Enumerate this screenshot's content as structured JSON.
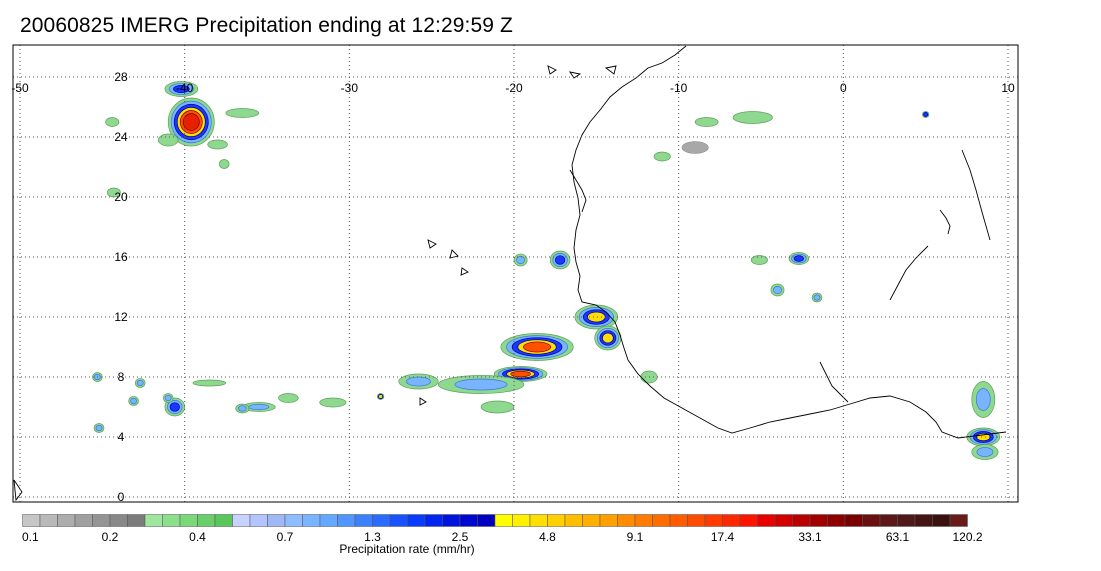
{
  "title": "20060825 IMERG Precipitation ending at 12:29:59 Z",
  "map": {
    "lon_range": [
      -50,
      10
    ],
    "lat_range": [
      -1,
      29
    ],
    "lon_ticks": [
      {
        "value": -50,
        "label": "-50"
      },
      {
        "value": -40,
        "label": "-40"
      },
      {
        "value": -30,
        "label": "-30"
      },
      {
        "value": -20,
        "label": "-20"
      },
      {
        "value": -10,
        "label": "-10"
      },
      {
        "value": 0,
        "label": "0"
      },
      {
        "value": 10,
        "label": "10"
      }
    ],
    "lat_ticks": [
      {
        "value": 0,
        "label": "0"
      },
      {
        "value": 4,
        "label": "4"
      },
      {
        "value": 8,
        "label": "8"
      },
      {
        "value": 12,
        "label": "12"
      },
      {
        "value": 16,
        "label": "16"
      },
      {
        "value": 20,
        "label": "20"
      },
      {
        "value": 24,
        "label": "24"
      },
      {
        "value": 28,
        "label": "28"
      }
    ],
    "grid": "dotted",
    "precip_cells": [
      {
        "lon": -39.6,
        "lat": 25.0,
        "rx": 1.4,
        "ry": 1.6,
        "level": 6
      },
      {
        "lon": -40.2,
        "lat": 27.2,
        "rx": 1.0,
        "ry": 0.5,
        "level": 3
      },
      {
        "lon": -41.0,
        "lat": 23.8,
        "rx": 0.6,
        "ry": 0.4,
        "level": 1
      },
      {
        "lon": -36.5,
        "lat": 25.6,
        "rx": 1.0,
        "ry": 0.3,
        "level": 1
      },
      {
        "lon": -38.0,
        "lat": 23.5,
        "rx": 0.6,
        "ry": 0.3,
        "level": 1
      },
      {
        "lon": -44.4,
        "lat": 25.0,
        "rx": 0.4,
        "ry": 0.3,
        "level": 1
      },
      {
        "lon": -44.3,
        "lat": 20.3,
        "rx": 0.4,
        "ry": 0.3,
        "level": 1
      },
      {
        "lon": -37.6,
        "lat": 22.2,
        "rx": 0.3,
        "ry": 0.3,
        "level": 1
      },
      {
        "lon": -18.6,
        "lat": 10.0,
        "rx": 2.2,
        "ry": 0.9,
        "level": 5
      },
      {
        "lon": -19.6,
        "lat": 8.2,
        "rx": 1.6,
        "ry": 0.5,
        "level": 5
      },
      {
        "lon": -15.0,
        "lat": 12.0,
        "rx": 1.3,
        "ry": 0.8,
        "level": 4
      },
      {
        "lon": -14.3,
        "lat": 10.6,
        "rx": 0.8,
        "ry": 0.8,
        "level": 4
      },
      {
        "lon": -22.0,
        "lat": 7.5,
        "rx": 2.6,
        "ry": 0.6,
        "level": 2
      },
      {
        "lon": -25.8,
        "lat": 7.7,
        "rx": 1.2,
        "ry": 0.5,
        "level": 2
      },
      {
        "lon": -17.2,
        "lat": 15.8,
        "rx": 0.6,
        "ry": 0.6,
        "level": 3
      },
      {
        "lon": -19.6,
        "lat": 15.8,
        "rx": 0.4,
        "ry": 0.4,
        "level": 2
      },
      {
        "lon": -21.0,
        "lat": 6.0,
        "rx": 1.0,
        "ry": 0.4,
        "level": 1
      },
      {
        "lon": -40.6,
        "lat": 6.0,
        "rx": 0.6,
        "ry": 0.6,
        "level": 3
      },
      {
        "lon": -45.3,
        "lat": 8.0,
        "rx": 0.3,
        "ry": 0.3,
        "level": 2
      },
      {
        "lon": -42.7,
        "lat": 7.6,
        "rx": 0.3,
        "ry": 0.3,
        "level": 2
      },
      {
        "lon": -43.1,
        "lat": 6.4,
        "rx": 0.3,
        "ry": 0.3,
        "level": 2
      },
      {
        "lon": -41.0,
        "lat": 6.6,
        "rx": 0.3,
        "ry": 0.3,
        "level": 2
      },
      {
        "lon": -35.5,
        "lat": 6.0,
        "rx": 1.0,
        "ry": 0.3,
        "level": 2
      },
      {
        "lon": -33.7,
        "lat": 6.6,
        "rx": 0.6,
        "ry": 0.3,
        "level": 1
      },
      {
        "lon": -31.0,
        "lat": 6.3,
        "rx": 0.8,
        "ry": 0.3,
        "level": 1
      },
      {
        "lon": -38.5,
        "lat": 7.6,
        "rx": 1.0,
        "ry": 0.2,
        "level": 1
      },
      {
        "lon": -36.5,
        "lat": 5.9,
        "rx": 0.4,
        "ry": 0.3,
        "level": 2
      },
      {
        "lon": -28.1,
        "lat": 6.7,
        "rx": 0.2,
        "ry": 0.2,
        "level": 4
      },
      {
        "lon": -45.2,
        "lat": 4.6,
        "rx": 0.3,
        "ry": 0.3,
        "level": 2
      },
      {
        "lon": 8.5,
        "lat": 4.0,
        "rx": 1.0,
        "ry": 0.6,
        "level": 4
      },
      {
        "lon": 8.5,
        "lat": 6.5,
        "rx": 0.7,
        "ry": 1.2,
        "level": 2
      },
      {
        "lon": 8.6,
        "lat": 3.0,
        "rx": 0.8,
        "ry": 0.5,
        "level": 2
      },
      {
        "lon": -8.3,
        "lat": 25.0,
        "rx": 0.7,
        "ry": 0.3,
        "level": 1
      },
      {
        "lon": -5.5,
        "lat": 25.3,
        "rx": 1.2,
        "ry": 0.4,
        "level": 1
      },
      {
        "lon": -9.0,
        "lat": 23.3,
        "rx": 0.8,
        "ry": 0.4,
        "level": 0
      },
      {
        "lon": -11.0,
        "lat": 22.7,
        "rx": 0.5,
        "ry": 0.3,
        "level": 1
      },
      {
        "lon": -2.7,
        "lat": 15.9,
        "rx": 0.6,
        "ry": 0.4,
        "level": 3
      },
      {
        "lon": -4.0,
        "lat": 13.8,
        "rx": 0.4,
        "ry": 0.4,
        "level": 2
      },
      {
        "lon": -1.6,
        "lat": 13.3,
        "rx": 0.3,
        "ry": 0.3,
        "level": 2
      },
      {
        "lon": -5.1,
        "lat": 15.8,
        "rx": 0.5,
        "ry": 0.3,
        "level": 1
      },
      {
        "lon": -11.8,
        "lat": 8.0,
        "rx": 0.5,
        "ry": 0.4,
        "level": 1
      },
      {
        "lon": 5.0,
        "lat": 25.5,
        "rx": 0.2,
        "ry": 0.2,
        "level": 3
      }
    ]
  },
  "colorbar": {
    "colors": [
      "#c6c6c6",
      "#b9b9b9",
      "#adadad",
      "#a0a0a0",
      "#949494",
      "#888888",
      "#7c7c7c",
      "#9ee89e",
      "#8be08b",
      "#7ad87a",
      "#6acf6a",
      "#5ac75a",
      "#c8d2ff",
      "#b3c4ff",
      "#9fb8f8",
      "#8dbcff",
      "#78b4ff",
      "#64a8ff",
      "#5096ff",
      "#3c80ff",
      "#2a6aff",
      "#1852ff",
      "#0a3cff",
      "#0026f0",
      "#0014e0",
      "#0008d0",
      "#0000c0",
      "#ffff00",
      "#ffef00",
      "#ffdf00",
      "#ffcf00",
      "#ffbf00",
      "#ffaf00",
      "#ff9f00",
      "#ff8c00",
      "#ff7c00",
      "#ff6c00",
      "#ff5c00",
      "#ff4c00",
      "#ff3c00",
      "#ff2800",
      "#ff1400",
      "#e80000",
      "#d00000",
      "#b80000",
      "#a00000",
      "#8c0000",
      "#780000",
      "#6a1010",
      "#5c1818",
      "#501818",
      "#441414",
      "#3a1010",
      "#6b1a1a"
    ],
    "labels": [
      {
        "value": "0.1",
        "index": 0
      },
      {
        "value": "0.2",
        "index": 5
      },
      {
        "value": "0.4",
        "index": 10
      },
      {
        "value": "0.7",
        "index": 15
      },
      {
        "value": "1.3",
        "index": 20
      },
      {
        "value": "2.5",
        "index": 25
      },
      {
        "value": "4.8",
        "index": 30
      },
      {
        "value": "9.1",
        "index": 35
      },
      {
        "value": "17.4",
        "index": 40
      },
      {
        "value": "33.1",
        "index": 45
      },
      {
        "value": "63.1",
        "index": 50
      },
      {
        "value": "120.2",
        "index": 54
      }
    ],
    "label_text": "Precipitation rate (mm/hr)"
  }
}
